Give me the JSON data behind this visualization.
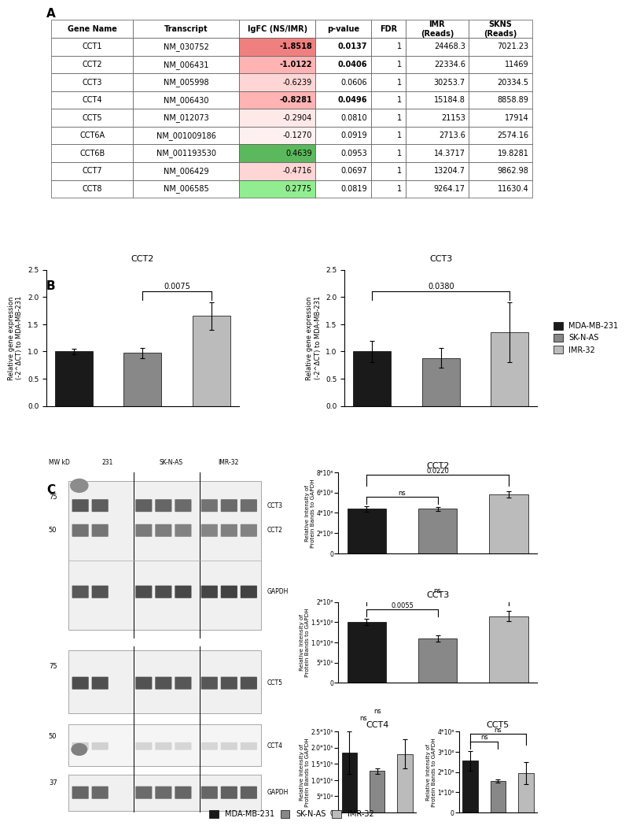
{
  "table": {
    "headers": [
      "Gene Name",
      "Transcript",
      "lgFC (NS/IMR)",
      "p-value",
      "FDR",
      "IMR\n(Reads)",
      "SKNS\n(Reads)"
    ],
    "rows": [
      [
        "CCT1",
        "NM_030752",
        "-1.8518",
        "0.0137",
        "1",
        "24468.3",
        "7021.23"
      ],
      [
        "CCT2",
        "NM_006431",
        "-1.0122",
        "0.0406",
        "1",
        "22334.6",
        "11469"
      ],
      [
        "CCT3",
        "NM_005998",
        "-0.6239",
        "0.0606",
        "1",
        "30253.7",
        "20334.5"
      ],
      [
        "CCT4",
        "NM_006430",
        "-0.8281",
        "0.0496",
        "1",
        "15184.8",
        "8858.89"
      ],
      [
        "CCT5",
        "NM_012073",
        "-0.2904",
        "0.0810",
        "1",
        "21153",
        "17914"
      ],
      [
        "CCT6A",
        "NM_001009186",
        "-0.1270",
        "0.0919",
        "1",
        "2713.6",
        "2574.16"
      ],
      [
        "CCT6B",
        "NM_001193530",
        "0.4639",
        "0.0953",
        "1",
        "14.3717",
        "19.8281"
      ],
      [
        "CCT7",
        "NM_006429",
        "-0.4716",
        "0.0697",
        "1",
        "13204.7",
        "9862.98"
      ],
      [
        "CCT8",
        "NM_006585",
        "0.2775",
        "0.0819",
        "1",
        "9264.17",
        "11630.4"
      ]
    ],
    "lgfc_colors": [
      "#f08080",
      "#ffb3b3",
      "#ffd5d5",
      "#ffb3b3",
      "#ffe8e8",
      "#fff0f0",
      "#5cb85c",
      "#ffd5d5",
      "#90ee90"
    ],
    "bold_pvalue": [
      true,
      true,
      false,
      true,
      false,
      false,
      false,
      false,
      false
    ]
  },
  "panel_b": {
    "CCT2": {
      "title": "CCT2",
      "categories": [
        "MDA-MB-231",
        "SK-N-AS",
        "IMR-32"
      ],
      "values": [
        1.0,
        0.97,
        1.65
      ],
      "errors": [
        0.05,
        0.1,
        0.25
      ],
      "sig_pair": [
        1,
        2
      ],
      "sig_label": "0.0075",
      "ylim": [
        0,
        2.5
      ],
      "yticks": [
        0,
        0.5,
        1.0,
        1.5,
        2.0,
        2.5
      ]
    },
    "CCT3": {
      "title": "CCT3",
      "categories": [
        "MDA-MB-231",
        "SK-N-AS",
        "IMR-32"
      ],
      "values": [
        1.0,
        0.88,
        1.35
      ],
      "errors": [
        0.2,
        0.18,
        0.55
      ],
      "sig_pair": [
        0,
        2
      ],
      "sig_label": "0.0380",
      "ylim": [
        0,
        2.5
      ],
      "yticks": [
        0,
        0.5,
        1.0,
        1.5,
        2.0,
        2.5
      ]
    }
  },
  "panel_c_bars": {
    "CCT2": {
      "title": "CCT2",
      "values": [
        4400000.0,
        4400000.0,
        5800000.0
      ],
      "errors": [
        250000.0,
        200000.0,
        300000.0
      ],
      "sig_pairs": [
        [
          0,
          1,
          "ns"
        ],
        [
          0,
          2,
          "0.0220"
        ]
      ],
      "ylim": [
        0,
        8000000.0
      ],
      "ytick_labels": [
        "0",
        "2*10⁶",
        "4*10⁶",
        "6*10⁶",
        "8*10⁶"
      ],
      "ytick_vals": [
        0,
        2000000.0,
        4000000.0,
        6000000.0,
        8000000.0
      ],
      "ylabel": "Relative Intensity of\nProtein Bands to GAPDH"
    },
    "CCT3": {
      "title": "CCT3",
      "values": [
        1500000.0,
        1100000.0,
        1650000.0
      ],
      "errors": [
        80000.0,
        80000.0,
        120000.0
      ],
      "sig_pairs": [
        [
          0,
          1,
          "0.0055"
        ],
        [
          0,
          2,
          "ns"
        ]
      ],
      "ylim": [
        0,
        2000000.0
      ],
      "ytick_labels": [
        "0",
        "5*10⁵",
        "1.0*10⁶",
        "1.5*10⁶",
        "2*10⁶"
      ],
      "ytick_vals": [
        0,
        500000.0,
        1000000.0,
        1500000.0,
        2000000.0
      ],
      "ylabel": "Relative Intensity of\nProtein Bands to GAPDH"
    },
    "CCT4": {
      "title": "CCT4",
      "values": [
        185000.0,
        128000.0,
        180000.0
      ],
      "errors": [
        65000.0,
        8000.0,
        45000.0
      ],
      "sig_pairs": [
        [
          0,
          1,
          "ns"
        ],
        [
          0,
          2,
          "ns"
        ]
      ],
      "ylim": [
        0,
        250000.0
      ],
      "ytick_labels": [
        "0",
        "5*10⁴",
        "1.0*10⁵",
        "1.5*10⁵",
        "2.0*10⁵",
        "2.5*10⁵"
      ],
      "ytick_vals": [
        0,
        50000.0,
        100000.0,
        150000.0,
        200000.0,
        250000.0
      ],
      "ylabel": "Relative Intensity of\nProtein Bands to GAPDH"
    },
    "CCT5": {
      "title": "CCT5",
      "values": [
        2550000.0,
        1550000.0,
        1950000.0
      ],
      "errors": [
        500000.0,
        70000.0,
        550000.0
      ],
      "sig_pairs": [
        [
          0,
          1,
          "ns"
        ],
        [
          0,
          2,
          "ns"
        ]
      ],
      "ylim": [
        0,
        4000000.0
      ],
      "ytick_labels": [
        "0",
        "1*10⁶",
        "2*10⁶",
        "3*10⁶",
        "4*10⁶"
      ],
      "ytick_vals": [
        0,
        1000000.0,
        2000000.0,
        3000000.0,
        4000000.0
      ],
      "ylabel": "Relative Intensity of\nProtein Bands to GAPDH"
    }
  },
  "bar_colors": {
    "MDA-MB-231": "#1a1a1a",
    "SK-N-AS": "#888888",
    "IMR-32": "#bbbbbb"
  },
  "legend_labels": [
    "MDA-MB-231",
    "SK-N-AS",
    "IMR-32"
  ],
  "panel_labels": [
    "A",
    "B",
    "C"
  ],
  "ylabel_b": "Relative gene expression\n(-2^ΔCT) to MDA-MB-231"
}
